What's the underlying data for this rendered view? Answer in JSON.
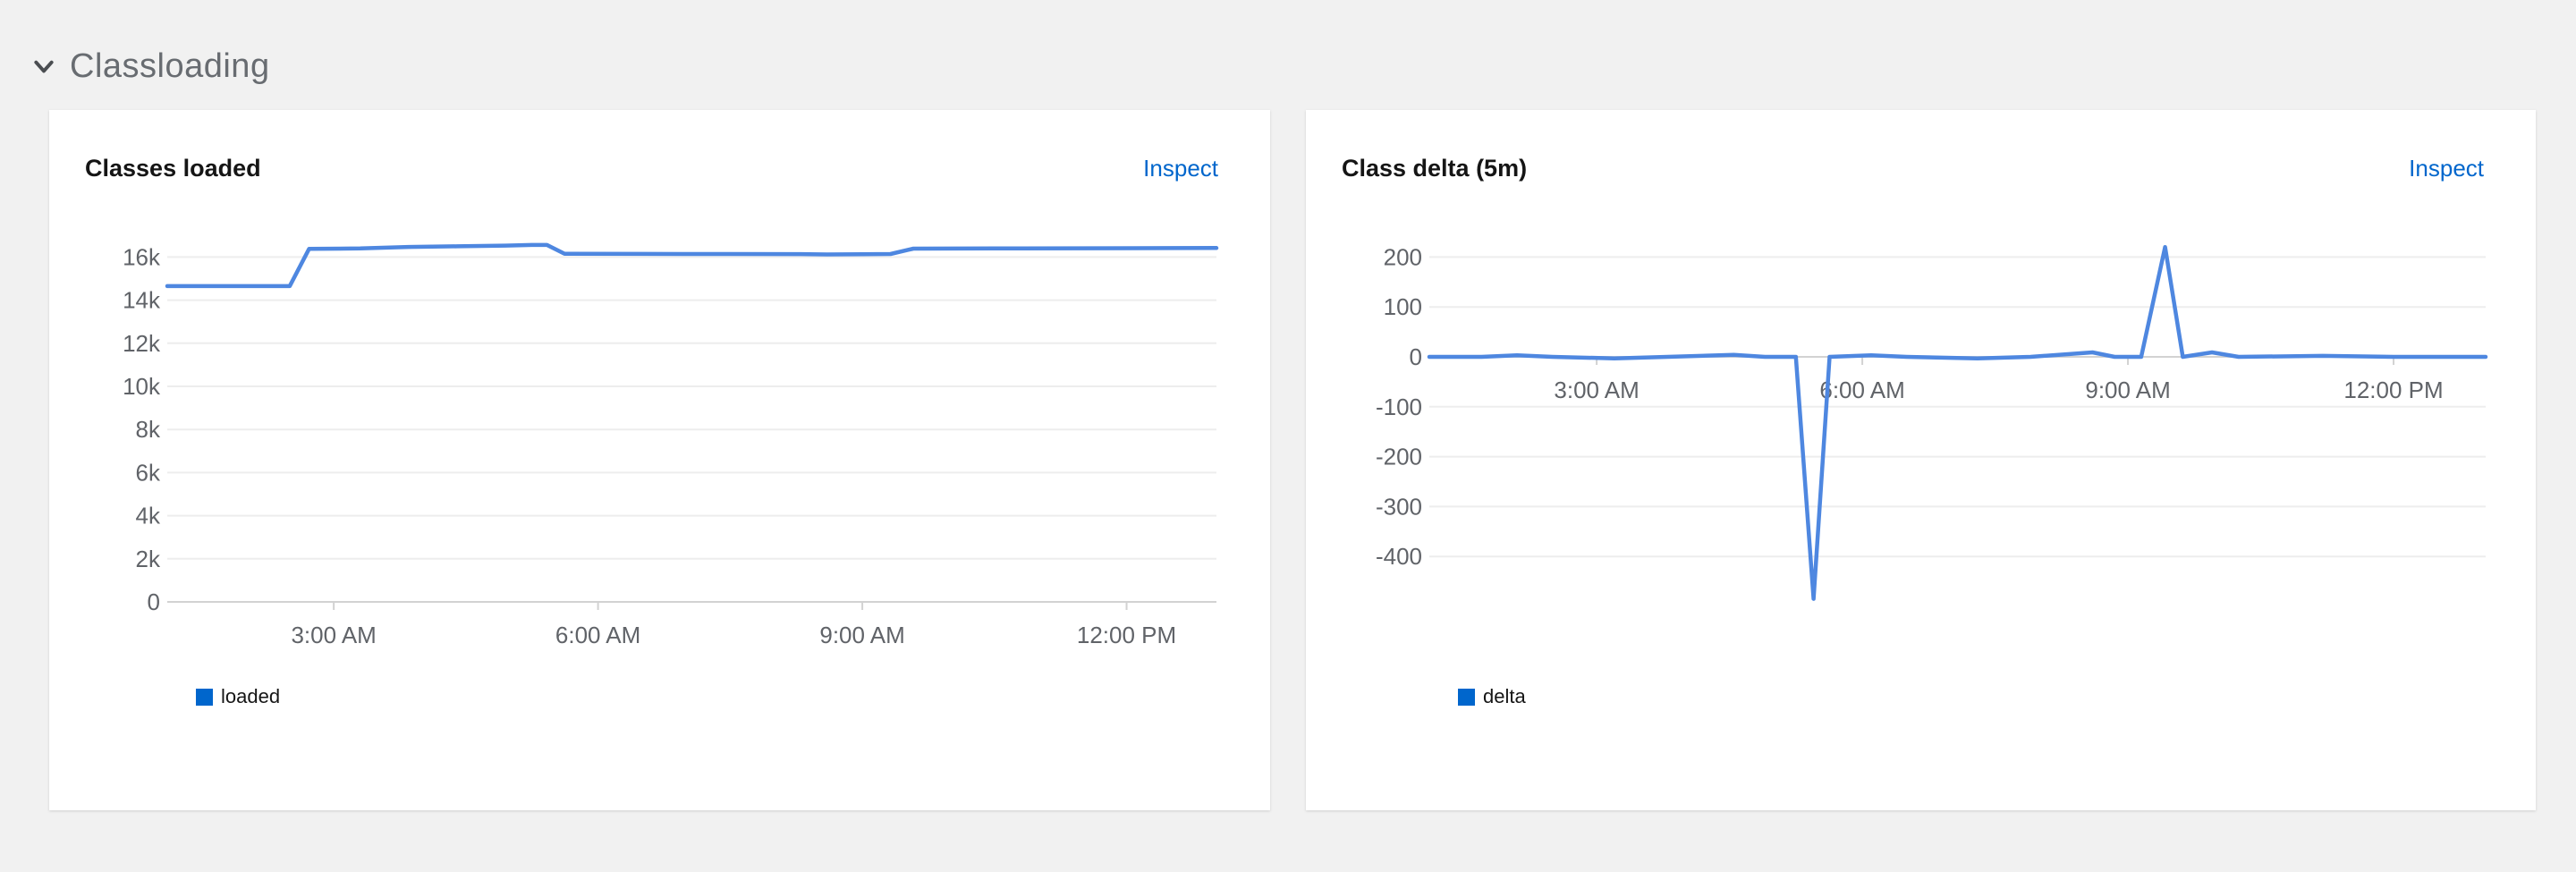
{
  "section": {
    "title": "Classloading",
    "collapse_icon": "chevron-down-icon",
    "expanded": true
  },
  "colors": {
    "background": "#f1f1f1",
    "card": "#ffffff",
    "line": "#4e87e0",
    "legend_swatch": "#0066cc",
    "link": "#0066cc",
    "grid": "#ededed",
    "axis": "#d2d2d2",
    "tick_text": "#606368",
    "title_text": "#151515",
    "section_text": "#686c71"
  },
  "chart_data": [
    {
      "type": "line",
      "title": "Classes loaded",
      "inspect_label": "Inspect",
      "legend": [
        {
          "label": "loaded",
          "color": "#0066cc"
        }
      ],
      "legend_position": "bottom-left",
      "grid": true,
      "x_range_hours": [
        1.11,
        13.02
      ],
      "x_ticks": [
        {
          "hour": 3,
          "label": "3:00 AM"
        },
        {
          "hour": 6,
          "label": "6:00 AM"
        },
        {
          "hour": 9,
          "label": "9:00 AM"
        },
        {
          "hour": 12,
          "label": "12:00 PM"
        }
      ],
      "ylim": [
        0,
        16600
      ],
      "y_ticks": [
        {
          "value": 16000,
          "label": "16k"
        },
        {
          "value": 14000,
          "label": "14k"
        },
        {
          "value": 12000,
          "label": "12k"
        },
        {
          "value": 10000,
          "label": "10k"
        },
        {
          "value": 8000,
          "label": "8k"
        },
        {
          "value": 6000,
          "label": "6k"
        },
        {
          "value": 4000,
          "label": "4k"
        },
        {
          "value": 2000,
          "label": "2k"
        },
        {
          "value": 0,
          "label": "0"
        }
      ],
      "series": [
        {
          "name": "loaded",
          "points": [
            [
              1.11,
              14650
            ],
            [
              2.0,
              14650
            ],
            [
              2.5,
              14650
            ],
            [
              2.72,
              16380
            ],
            [
              3.3,
              16400
            ],
            [
              3.85,
              16470
            ],
            [
              4.4,
              16500
            ],
            [
              4.95,
              16530
            ],
            [
              5.25,
              16560
            ],
            [
              5.42,
              16560
            ],
            [
              5.62,
              16150
            ],
            [
              6.5,
              16145
            ],
            [
              7.5,
              16140
            ],
            [
              8.3,
              16135
            ],
            [
              8.6,
              16120
            ],
            [
              9.0,
              16130
            ],
            [
              9.32,
              16140
            ],
            [
              9.58,
              16390
            ],
            [
              10.5,
              16400
            ],
            [
              11.5,
              16405
            ],
            [
              12.5,
              16415
            ],
            [
              13.02,
              16420
            ]
          ]
        }
      ]
    },
    {
      "type": "line",
      "title": "Class delta (5m)",
      "inspect_label": "Inspect",
      "legend": [
        {
          "label": "delta",
          "color": "#0066cc"
        }
      ],
      "legend_position": "bottom-left",
      "grid": true,
      "x_range_hours": [
        1.11,
        13.04
      ],
      "x_ticks": [
        {
          "hour": 3,
          "label": "3:00 AM"
        },
        {
          "hour": 6,
          "label": "6:00 AM"
        },
        {
          "hour": 9,
          "label": "9:00 AM"
        },
        {
          "hour": 12,
          "label": "12:00 PM"
        }
      ],
      "ylim": [
        -490,
        230
      ],
      "y_ticks": [
        {
          "value": 200,
          "label": "200"
        },
        {
          "value": 100,
          "label": "100"
        },
        {
          "value": 0,
          "label": "0"
        },
        {
          "value": -100,
          "label": "-100"
        },
        {
          "value": -200,
          "label": "-200"
        },
        {
          "value": -300,
          "label": "-300"
        },
        {
          "value": -400,
          "label": "-400"
        }
      ],
      "series": [
        {
          "name": "delta",
          "points": [
            [
              1.11,
              0
            ],
            [
              1.7,
              0
            ],
            [
              2.1,
              3
            ],
            [
              2.5,
              0
            ],
            [
              3.2,
              -3
            ],
            [
              3.8,
              0
            ],
            [
              4.55,
              4
            ],
            [
              4.9,
              0
            ],
            [
              5.25,
              0
            ],
            [
              5.45,
              -485
            ],
            [
              5.63,
              0
            ],
            [
              6.1,
              3
            ],
            [
              6.5,
              0
            ],
            [
              7.3,
              -3
            ],
            [
              7.9,
              0
            ],
            [
              8.6,
              9
            ],
            [
              8.85,
              0
            ],
            [
              9.15,
              0
            ],
            [
              9.42,
              220
            ],
            [
              9.62,
              0
            ],
            [
              9.95,
              9
            ],
            [
              10.25,
              0
            ],
            [
              11.2,
              2
            ],
            [
              12.0,
              0
            ],
            [
              13.04,
              0
            ]
          ]
        }
      ]
    }
  ]
}
